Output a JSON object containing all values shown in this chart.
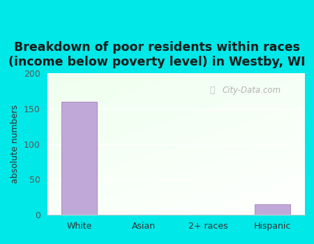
{
  "categories": [
    "White",
    "Asian",
    "2+ races",
    "Hispanic"
  ],
  "values": [
    160,
    0,
    0,
    15
  ],
  "bar_color": "#c0a8d8",
  "bar_edgecolor": "#b090c8",
  "title_line1": "Breakdown of poor residents within races",
  "title_line2": "(income below poverty level) in Westby, WI",
  "ylabel": "absolute numbers",
  "ylim": [
    0,
    200
  ],
  "yticks": [
    0,
    50,
    100,
    150,
    200
  ],
  "outer_bg": "#00e8e8",
  "watermark": "City-Data.com",
  "title_fontsize": 12.5,
  "ylabel_fontsize": 9,
  "tick_fontsize": 9,
  "grid_color": "#ffffff",
  "spine_color": "#cccccc"
}
